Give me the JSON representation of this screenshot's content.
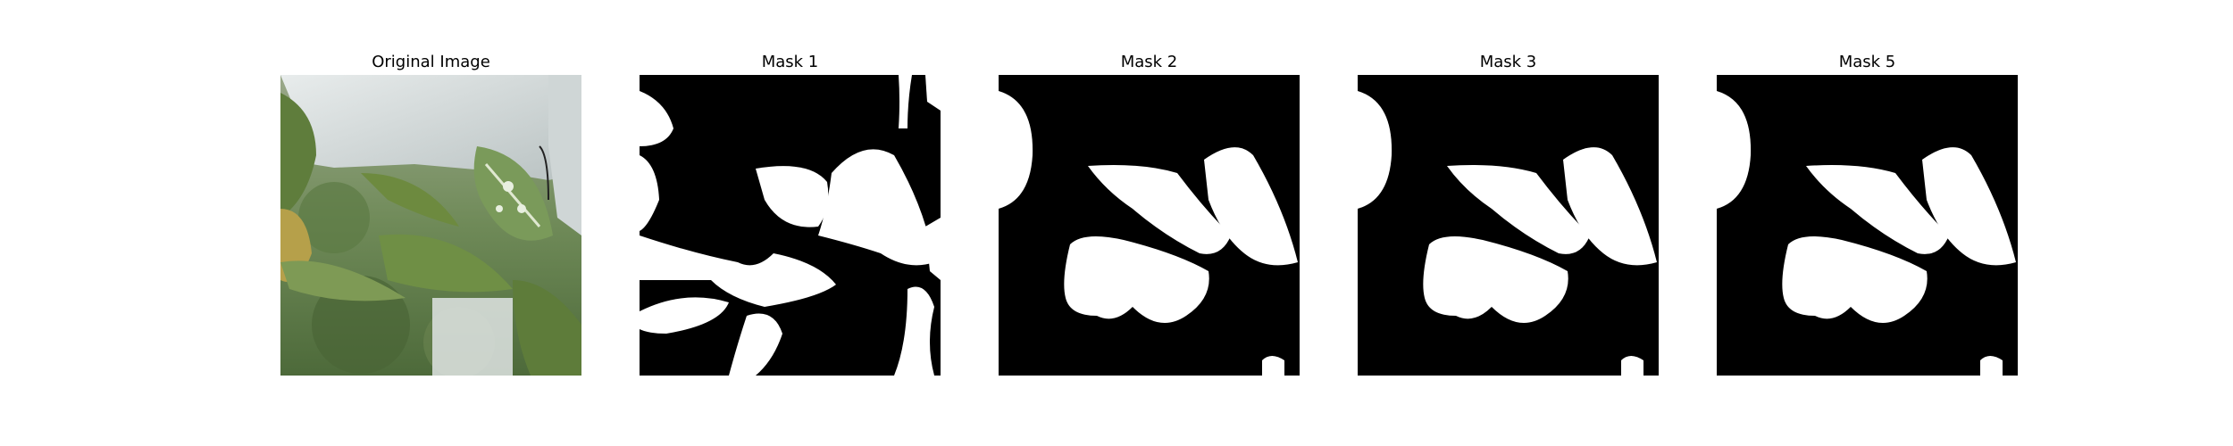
{
  "panels": [
    {
      "title": "Original Image"
    },
    {
      "title": "Mask 1"
    },
    {
      "title": "Mask 2"
    },
    {
      "title": "Mask 3"
    },
    {
      "title": "Mask 5"
    }
  ],
  "colors": {
    "mask_background": "#000000",
    "mask_foreground": "#ffffff",
    "page_background": "#ffffff"
  }
}
